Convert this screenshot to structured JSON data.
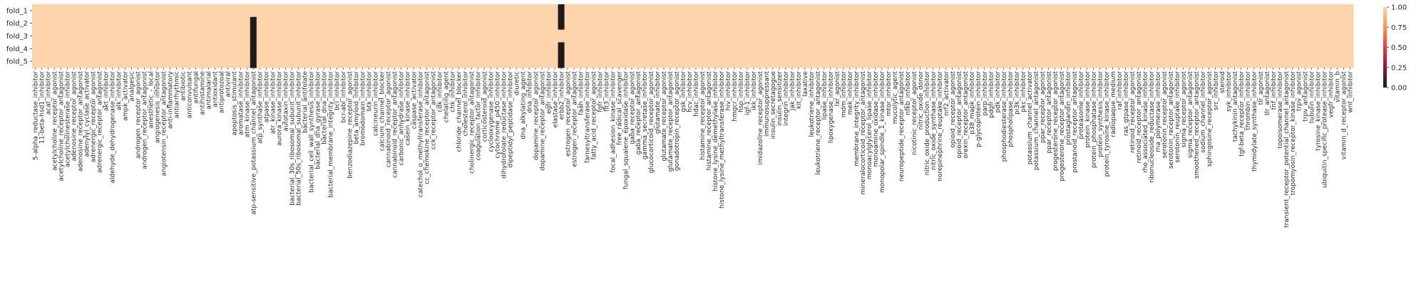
{
  "colors": {
    "high": "#fdd4ac",
    "low": "#1f1a1b",
    "colorbar_stops": [
      "#1f1a1b",
      "#5a1f33",
      "#a12741",
      "#dd3f3f",
      "#f27a50",
      "#f9a878",
      "#fdd4ac"
    ]
  },
  "chart_data": {
    "type": "heatmap",
    "rows": [
      "fold_1",
      "fold_2",
      "fold_3",
      "fold_4",
      "fold_5"
    ],
    "columns": [
      "5-alpha_reductase_inhibitor",
      "11-beta-hsd1_inhibitor",
      "acat_inhibitor",
      "acetylcholine_receptor_agonist",
      "acetylcholine_receptor_antagonist",
      "acetylcholinesterase_inhibitor",
      "adenosine_receptor_agonist",
      "adenosine_receptor_antagonist",
      "adenylyl_cyclase_activator",
      "adrenergic_receptor_agonist",
      "adrenergic_receptor_antagonist",
      "akt_inhibitor",
      "aldehyde_dehydrogenase_inhibitor",
      "alk_inhibitor",
      "ampk_activator",
      "analgesic",
      "androgen_receptor_agonist",
      "androgen_receptor_antagonist",
      "anesthetic_-_local",
      "angiogenesis_inhibitor",
      "angiotensin_receptor_antagonist",
      "anti-inflammatory",
      "antiarrhythmic",
      "antibiotic",
      "anticonvulsant",
      "antifungal",
      "antihistamine",
      "antimalarial",
      "antioxidant",
      "antiprotozoal",
      "antiviral",
      "apoptosis_stimulant",
      "aromatase_inhibitor",
      "atm_kinase_inhibitor",
      "atp-sensitive_potassium_channel_antagonist",
      "atp_synthase_inhibitor",
      "atpase_inhibitor",
      "atr_kinase_inhibitor",
      "aurora_kinase_inhibitor",
      "autotaxin_inhibitor",
      "bacterial_30s_ribosomal_subunit_inhibitor",
      "bacterial_50s_ribosomal_subunit_inhibitor",
      "bacterial_antifolate",
      "bacterial_cell_wall_synthesis_inhibitor",
      "bacterial_dna_gyrase_inhibitor",
      "bacterial_dna_inhibitor",
      "bacterial_membrane_integrity_inhibitor",
      "bcl_inhibitor",
      "bcr-abl_inhibitor",
      "benzodiazepine_receptor_agonist",
      "beta_amyloid_inhibitor",
      "bromodomain_inhibitor",
      "btk_inhibitor",
      "calcineurin_inhibitor",
      "calcium_channel_blocker",
      "cannabinoid_receptor_agonist",
      "cannabinoid_receptor_antagonist",
      "carbonic_anhydrase_inhibitor",
      "casein_kinase_inhibitor",
      "caspase_activator",
      "catechol_o_methyltransferase_inhibitor",
      "cc_chemokine_receptor_antagonist",
      "cck_receptor_antagonist",
      "cdk_inhibitor",
      "chelating_agent",
      "chk_inhibitor",
      "chloride_channel_blocker",
      "cholesterol_inhibitor",
      "cholinergic_receptor_antagonist",
      "coagulation_factor_inhibitor",
      "corticosteroid_agonist",
      "cyclooxygenase_inhibitor",
      "cytochrome_p450_inhibitor",
      "dihydrofolate_reductase_inhibitor",
      "dipeptidyl_peptidase_inhibitor",
      "diuretic",
      "dna_alkylating_agent",
      "dna_inhibitor",
      "dopamine_receptor_agonist",
      "dopamine_receptor_antagonist",
      "egfr_inhibitor",
      "elastase_inhibitor",
      "erbb2_inhibitor",
      "estrogen_receptor_agonist",
      "estrogen_receptor_antagonist",
      "faah_inhibitor",
      "farnesyltransferase_inhibitor",
      "fatty_acid_receptor_agonist",
      "fgfr_inhibitor",
      "flt3_inhibitor",
      "focal_adhesion_kinase_inhibitor",
      "free_radical_scavenger",
      "fungal_squalene_epoxidase_inhibitor",
      "gaba_receptor_agonist",
      "gaba_receptor_antagonist",
      "gamma_secretase_inhibitor",
      "glucocorticoid_receptor_agonist",
      "glutamate_inhibitor",
      "glutamate_receptor_agonist",
      "glutamate_receptor_antagonist",
      "gonadotropin_receptor_agonist",
      "gsk_inhibitor",
      "hcv_inhibitor",
      "hdac_inhibitor",
      "histamine_receptor_agonist",
      "histamine_receptor_antagonist",
      "histone_lysine_demethylase_inhibitor",
      "histone_lysine_methyltransferase_inhibitor",
      "hiv_inhibitor",
      "hmgcr_inhibitor",
      "hsp_inhibitor",
      "igf-1_inhibitor",
      "ikk_inhibitor",
      "imidazoline_receptor_agonist",
      "immunosuppressant",
      "insulin_secretagogue",
      "insulin_sensitizer",
      "integrin_inhibitor",
      "jak_inhibitor",
      "kit_inhibitor",
      "laxative",
      "leukotriene_inhibitor",
      "leukotriene_receptor_antagonist",
      "lipase_inhibitor",
      "lipoxygenase_inhibitor",
      "lxr_agonist",
      "mdm_inhibitor",
      "mek_inhibitor",
      "membrane_integrity_inhibitor",
      "mineralocorticoid_receptor_antagonist",
      "monoacylglycerol_lipase_inhibitor",
      "monoamine_oxidase_inhibitor",
      "monopolar_spindle_1_kinase_inhibitor",
      "mtor_inhibitor",
      "mucolytic_agent",
      "neuropeptide_receptor_antagonist",
      "nfkb_inhibitor",
      "nicotinic_receptor_agonist",
      "nitric_oxide_donor",
      "nitric_oxide_production_inhibitor",
      "nitric_oxide_synthase_inhibitor",
      "norepinephrine_reuptake_inhibitor",
      "nrf2_activator",
      "opioid_receptor_agonist",
      "opioid_receptor_antagonist",
      "orexin_receptor_antagonist",
      "p38_mapk_inhibitor",
      "p-glycoprotein_inhibitor",
      "parp_inhibitor",
      "pdgfr_inhibitor",
      "pdk_inhibitor",
      "phosphodiesterase_inhibitor",
      "phospholipase_inhibitor",
      "pi3k_inhibitor",
      "pkc_inhibitor",
      "potassium_channel_activator",
      "potassium_channel_antagonist",
      "ppar_receptor_agonist",
      "ppar_receptor_antagonist",
      "progesterone_receptor_agonist",
      "progesterone_receptor_antagonist",
      "prostaglandin_inhibitor",
      "prostanoid_receptor_antagonist",
      "proteasome_inhibitor",
      "protein_kinase_inhibitor",
      "protein_phosphatase_inhibitor",
      "protein_synthesis_inhibitor",
      "protein_tyrosine_kinase_inhibitor",
      "radiopaque_medium",
      "raf_inhibitor",
      "ras_gtpase_inhibitor",
      "retinoid_receptor_agonist",
      "retinoid_receptor_antagonist",
      "rho_associated_kinase_inhibitor",
      "ribonucleoside_reductase_inhibitor",
      "rna_polymerase_inhibitor",
      "serotonin_receptor_agonist",
      "serotonin_receptor_antagonist",
      "serotonin_reuptake_inhibitor",
      "sigma_receptor_agonist",
      "sigma_receptor_antagonist",
      "smoothened_receptor_antagonist",
      "sodium_channel_inhibitor",
      "sphingosine_receptor_agonist",
      "src_inhibitor",
      "steroid",
      "syk_inhibitor",
      "tachykinin_antagonist",
      "tgf-beta_receptor_inhibitor",
      "thrombin_inhibitor",
      "thymidylate_synthase_inhibitor",
      "tlr_agonist",
      "tlr_antagonist",
      "tnf_inhibitor",
      "topoisomerase_inhibitor",
      "transient_receptor_potential_channel_antagonist",
      "tropomyosin_receptor_kinase_inhibitor",
      "trpv_agonist",
      "trpv_antagonist",
      "tubulin_inhibitor",
      "tyrosine_kinase_inhibitor",
      "ubiquitin_specific_protease_inhibitor",
      "vegfr_inhibitor",
      "vitamin_b",
      "vitamin_d_receptor_agonist",
      "wnt_inhibitor"
    ],
    "default_value": 1.0,
    "cells_at_zero": [
      {
        "row": "fold_2",
        "column": "atp-sensitive_potassium_channel_antagonist"
      },
      {
        "row": "fold_3",
        "column": "atp-sensitive_potassium_channel_antagonist"
      },
      {
        "row": "fold_4",
        "column": "atp-sensitive_potassium_channel_antagonist"
      },
      {
        "row": "fold_5",
        "column": "atp-sensitive_potassium_channel_antagonist"
      },
      {
        "row": "fold_1",
        "column": "erbb2_inhibitor"
      },
      {
        "row": "fold_2",
        "column": "erbb2_inhibitor"
      },
      {
        "row": "fold_4",
        "column": "erbb2_inhibitor"
      },
      {
        "row": "fold_5",
        "column": "erbb2_inhibitor"
      }
    ],
    "colorbar": {
      "vmin": 0.0,
      "vmax": 1.0,
      "ticks": [
        "0.00",
        "0.25",
        "0.50",
        "0.75",
        "1.00"
      ]
    }
  }
}
